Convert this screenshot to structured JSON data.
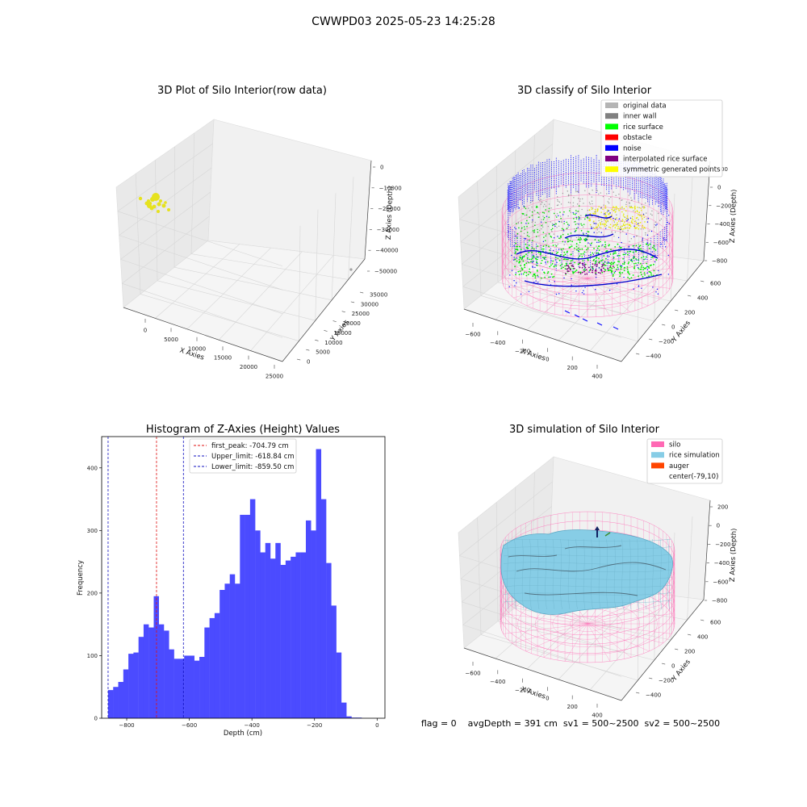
{
  "figure": {
    "suptitle": "CWWPD03 2025-05-23 14:25:28",
    "footer": "flag = 0    avgDepth = 391 cm  sv1 = 500~2500  sv2 = 500~2500"
  },
  "colors": {
    "raw_points": "#e6e21e",
    "hist_bar": "#4b4bff",
    "first_peak": "#e01010",
    "limits": "#1010c0",
    "silo_pink": "#ff69b4",
    "rice_blue": "#87cde6",
    "pane": "#f0f0f0"
  },
  "chart_data": [
    {
      "type": "scatter3d",
      "title": "3D Plot of Silo Interior(row data)",
      "xlabel": "X Axies",
      "ylabel": "Y Axies",
      "zlabel": "Z Axies (Depth)",
      "xticks": [
        "0",
        "5000",
        "10000",
        "15000",
        "20000",
        "25000"
      ],
      "yticks": [
        "0",
        "5000",
        "10000",
        "15000",
        "20000",
        "25000",
        "30000",
        "35000"
      ],
      "zticks": [
        "0",
        "−10000",
        "−20000",
        "−30000",
        "−40000",
        "−50000"
      ],
      "xlim": [
        -2000,
        25000
      ],
      "ylim": [
        0,
        38000
      ],
      "zlim": [
        -52000,
        1000
      ],
      "note": "cluster of yellow points near origin, one grey outlier far away"
    },
    {
      "type": "scatter3d",
      "title": "3D classify of Silo Interior",
      "xlabel": "X Axies",
      "ylabel": "Y Axies",
      "zlabel": "Z Axies (Depth)",
      "xticks": [
        "−600",
        "−400",
        "−200",
        "0",
        "200",
        "400"
      ],
      "yticks": [
        "−400",
        "−200",
        "0",
        "200",
        "400",
        "600"
      ],
      "zticks": [
        "0",
        "−200",
        "−400",
        "−600",
        "−800"
      ],
      "zticks_extra": [
        "00"
      ],
      "legend_placement": "top-right",
      "legend": [
        {
          "label": "original data",
          "color": "#b4b4b4"
        },
        {
          "label": "inner wall",
          "color": "#808080"
        },
        {
          "label": "rice surface",
          "color": "#00ff00"
        },
        {
          "label": "obstacle",
          "color": "#ff0000"
        },
        {
          "label": "noise",
          "color": "#0000ff"
        },
        {
          "label": "interpolated rice surface",
          "color": "#800080"
        },
        {
          "label": "symmetric generated points",
          "color": "#ffff00"
        }
      ]
    },
    {
      "type": "bar",
      "title": "Histogram of Z-Axies (Height) Values",
      "xlabel": "Depth (cm)",
      "ylabel": "Frequency",
      "xlim": [
        -880,
        25
      ],
      "ylim": [
        0,
        450
      ],
      "xticks": [
        -800,
        -600,
        -400,
        -200,
        0
      ],
      "xtick_labels": [
        "−800",
        "−600",
        "−400",
        "−200",
        "0"
      ],
      "yticks": [
        0,
        100,
        200,
        300,
        400
      ],
      "bin_start": -859.5,
      "bin_width": 16.2,
      "values": [
        45,
        50,
        58,
        78,
        103,
        105,
        130,
        150,
        145,
        195,
        150,
        140,
        110,
        95,
        95,
        100,
        100,
        92,
        98,
        145,
        160,
        168,
        205,
        215,
        230,
        215,
        325,
        325,
        350,
        300,
        265,
        280,
        255,
        280,
        245,
        252,
        258,
        265,
        265,
        316,
        300,
        430,
        350,
        248,
        180,
        105,
        25,
        3,
        1,
        1
      ],
      "lines": [
        {
          "label": "first_peak: -704.79 cm",
          "x": -704.79,
          "color": "#e01010"
        },
        {
          "label": "Upper_limit: -618.84 cm",
          "x": -618.84,
          "color": "#1010c0"
        },
        {
          "label": "Lower_limit: -859.50 cm",
          "x": -859.5,
          "color": "#1010c0"
        }
      ],
      "legend_placement": "top-center"
    },
    {
      "type": "surface3d",
      "title": "3D simulation of Silo Interior",
      "xlabel": "X Axies",
      "ylabel": "Y Axies",
      "zlabel": "Z Axies (Depth)",
      "xticks": [
        "−600",
        "−400",
        "−200",
        "0",
        "200",
        "400"
      ],
      "yticks": [
        "−400",
        "−200",
        "0",
        "200",
        "400",
        "600"
      ],
      "zticks": [
        "200",
        "0",
        "−200",
        "−400",
        "−600",
        "−800"
      ],
      "legend_placement": "top-right",
      "legend": [
        {
          "label": "silo",
          "color": "#ff69b4"
        },
        {
          "label": "rice simulation",
          "color": "#87cde6"
        },
        {
          "label": "auger",
          "color": "#ff4500"
        },
        {
          "label": "center(-79,10)",
          "color": "#ffffff"
        }
      ]
    }
  ]
}
